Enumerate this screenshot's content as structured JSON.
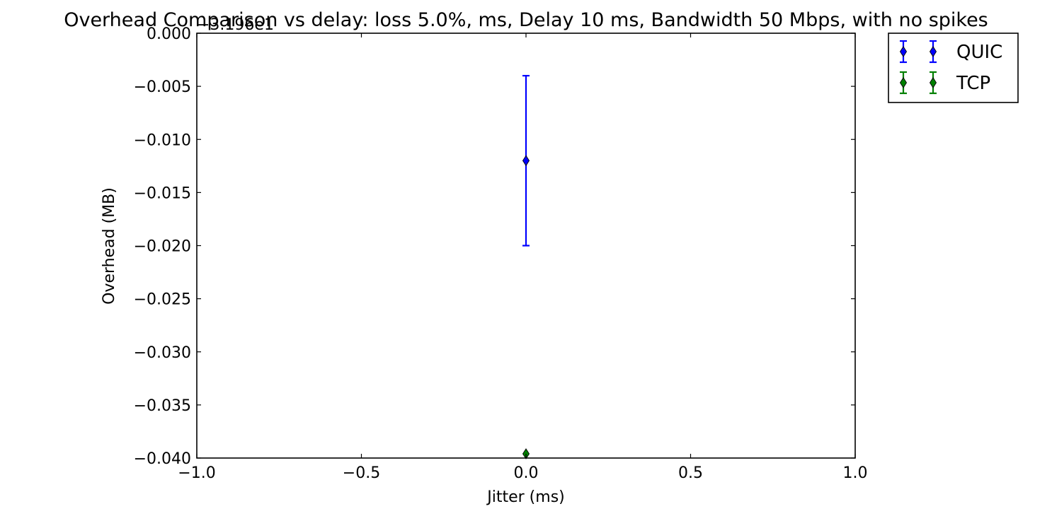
{
  "chart_data": {
    "type": "scatter",
    "title": "Overhead Comparison vs delay: loss 5.0%, ms, Delay 10 ms, Bandwidth 50 Mbps, with no spikes",
    "xlabel": "Jitter (ms)",
    "ylabel": "Overhead (MB)",
    "y_offset_label": "−3.196e1",
    "xlim": [
      -1.0,
      1.0
    ],
    "ylim": [
      -0.04,
      0.0
    ],
    "xticks": [
      -1.0,
      -0.5,
      0.0,
      0.5,
      1.0
    ],
    "xtick_labels": [
      "−1.0",
      "−0.5",
      "0.0",
      "0.5",
      "1.0"
    ],
    "yticks": [
      0.0,
      -0.005,
      -0.01,
      -0.015,
      -0.02,
      -0.025,
      -0.03,
      -0.035,
      -0.04
    ],
    "ytick_labels": [
      "0.000",
      "−0.005",
      "−0.010",
      "−0.015",
      "−0.020",
      "−0.025",
      "−0.030",
      "−0.035",
      "−0.040"
    ],
    "grid": false,
    "legend_position": "outside-top-right",
    "marker": "thin-diamond",
    "series": [
      {
        "name": "QUIC",
        "color": "#0000ff",
        "x": [
          0.0
        ],
        "y": [
          -0.012
        ],
        "yerr_low": [
          -0.02
        ],
        "yerr_high": [
          -0.004
        ]
      },
      {
        "name": "TCP",
        "color": "#008000",
        "x": [
          0.0
        ],
        "y": [
          -0.0396
        ],
        "yerr_low": [
          -0.0396
        ],
        "yerr_high": [
          -0.0396
        ]
      }
    ]
  }
}
